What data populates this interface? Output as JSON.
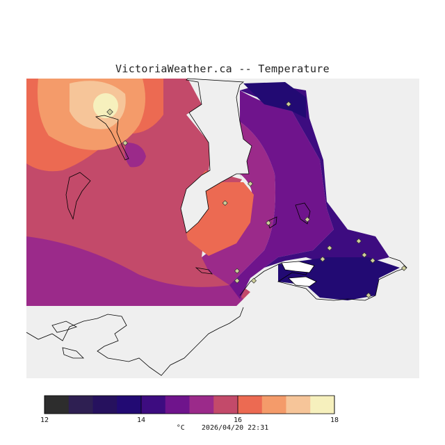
{
  "title": "VictoriaWeather.ca -- Temperature",
  "footer": {
    "unit": "°C",
    "timestamp": "2026/04/20 22:31"
  },
  "legend": {
    "min": 12,
    "max": 18,
    "tick_labels": [
      "12",
      "14",
      "16",
      "18"
    ],
    "ticks": [
      12,
      14,
      16,
      18
    ],
    "colors": [
      "#2d2d2d",
      "#2e1f52",
      "#26115e",
      "#220a73",
      "#3d0c80",
      "#6f148c",
      "#9b2a8a",
      "#c34a6a",
      "#ec6a52",
      "#f49b6a",
      "#f6c599",
      "#f6f0bd"
    ]
  },
  "colors": {
    "background": "#ffffff",
    "outside_domain": "#efefef",
    "station_marker": "#cfcf9a"
  },
  "stations_count": 17
}
